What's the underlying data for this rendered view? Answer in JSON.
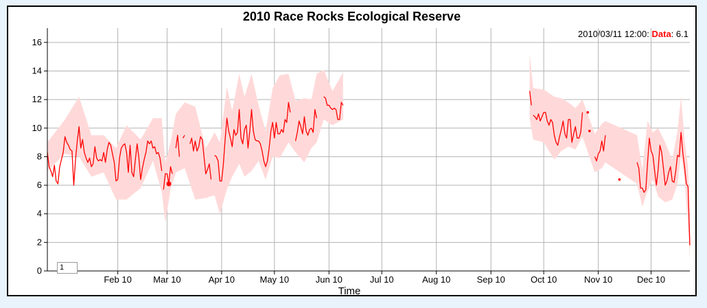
{
  "chart_data": {
    "type": "line",
    "title": "2010 Race Rocks Ecological Reserve",
    "xlabel": "Time",
    "ylabel": "",
    "ylim": [
      0,
      17
    ],
    "xlim": [
      0,
      365
    ],
    "y_ticks": [
      0,
      2,
      4,
      6,
      8,
      10,
      12,
      14,
      16
    ],
    "x_ticks": [
      {
        "label": "Feb 10",
        "day": 40
      },
      {
        "label": "Mar 10",
        "day": 68
      },
      {
        "label": "Apr 10",
        "day": 99
      },
      {
        "label": "May 10",
        "day": 129
      },
      {
        "label": "Jun 10",
        "day": 160
      },
      {
        "label": "Jul 10",
        "day": 190
      },
      {
        "label": "Aug 10",
        "day": 221
      },
      {
        "label": "Sep 10",
        "day": 252
      },
      {
        "label": "Oct 10",
        "day": 282
      },
      {
        "label": "Nov 10",
        "day": 313
      },
      {
        "label": "Dec 10",
        "day": 343
      }
    ],
    "grid": true,
    "line_color": "#ff0000",
    "band_color": "#ffd9d9",
    "series": [
      {
        "values": [
          [
            0,
            8.3
          ],
          [
            1,
            7.3
          ],
          [
            2,
            7.0
          ],
          [
            3,
            6.6
          ],
          [
            4,
            7.4
          ],
          [
            5,
            6.3
          ],
          [
            6,
            6.1
          ],
          [
            7,
            7.3
          ],
          [
            8,
            7.8
          ],
          [
            9,
            8.3
          ],
          [
            10,
            9.4
          ],
          [
            11,
            9.0
          ],
          [
            12,
            8.8
          ],
          [
            13,
            8.5
          ],
          [
            14,
            8.4
          ],
          [
            15,
            6.0
          ],
          [
            16,
            7.8
          ],
          [
            17,
            9.1
          ],
          [
            18,
            10.1
          ],
          [
            19,
            8.6
          ],
          [
            20,
            9.2
          ],
          [
            21,
            8.3
          ],
          [
            22,
            7.9
          ],
          [
            23,
            7.6
          ],
          [
            24,
            7.9
          ],
          [
            25,
            7.3
          ],
          [
            26,
            7.5
          ],
          [
            27,
            8.7
          ],
          [
            28,
            7.9
          ],
          [
            29,
            7.7
          ],
          [
            30,
            7.8
          ],
          [
            31,
            7.7
          ],
          [
            32,
            8.3
          ],
          [
            33,
            7.6
          ],
          [
            34,
            8.5
          ],
          [
            35,
            9.0
          ],
          [
            36,
            8.8
          ],
          [
            37,
            8.2
          ],
          [
            38,
            7.6
          ],
          [
            39,
            6.3
          ],
          [
            40,
            6.4
          ],
          [
            41,
            7.9
          ],
          [
            42,
            8.6
          ],
          [
            43,
            8.8
          ],
          [
            44,
            8.9
          ],
          [
            45,
            8.3
          ],
          [
            46,
            6.9
          ],
          [
            47,
            8.8
          ],
          [
            48,
            6.9
          ],
          [
            49,
            6.6
          ],
          [
            50,
            7.8
          ],
          [
            51,
            8.9
          ],
          [
            52,
            7.9
          ],
          [
            53,
            6.4
          ],
          [
            54,
            7.2
          ],
          [
            55,
            7.8
          ],
          [
            56,
            8.3
          ],
          [
            57,
            9.1
          ],
          [
            58,
            8.9
          ],
          [
            59,
            9.1
          ],
          [
            60,
            8.6
          ],
          [
            61,
            8.7
          ],
          [
            62,
            8.2
          ],
          [
            63,
            8.3
          ],
          [
            64,
            7.9
          ],
          [
            65,
            7.0
          ],
          null,
          [
            66,
            5.7
          ],
          [
            67,
            6.8
          ],
          [
            68,
            6.8
          ],
          [
            69,
            6.1
          ],
          [
            70,
            7.3
          ],
          [
            71,
            6.8
          ],
          null,
          [
            73,
            8.6
          ],
          [
            74,
            9.5
          ],
          [
            75,
            8.0
          ],
          null,
          [
            77,
            9.3
          ],
          [
            78,
            9.5
          ],
          null,
          [
            81,
            8.9
          ],
          [
            82,
            9.3
          ],
          [
            83,
            8.4
          ],
          [
            84,
            9.1
          ],
          [
            85,
            8.4
          ],
          [
            86,
            8.7
          ],
          [
            87,
            9.4
          ],
          [
            88,
            9.2
          ],
          [
            89,
            8.0
          ],
          [
            90,
            6.8
          ],
          [
            91,
            7.1
          ],
          [
            92,
            7.5
          ],
          [
            93,
            6.4
          ],
          null,
          [
            95,
            8.1
          ],
          [
            96,
            8.0
          ],
          [
            97,
            7.7
          ],
          [
            98,
            6.3
          ],
          [
            99,
            6.3
          ],
          [
            100,
            7.5
          ],
          [
            101,
            9.2
          ],
          [
            102,
            10.7
          ],
          [
            103,
            9.8
          ],
          [
            104,
            9.3
          ],
          [
            105,
            8.7
          ],
          [
            106,
            9.9
          ],
          [
            107,
            9.5
          ],
          [
            108,
            9.7
          ],
          [
            109,
            11.3
          ],
          [
            110,
            9.3
          ],
          [
            111,
            8.9
          ],
          [
            112,
            9.9
          ],
          [
            113,
            10.2
          ],
          [
            114,
            8.6
          ],
          [
            115,
            9.8
          ],
          [
            116,
            11.3
          ],
          [
            117,
            9.8
          ],
          [
            118,
            9.2
          ],
          [
            119,
            9.1
          ],
          [
            120,
            9.1
          ],
          [
            121,
            8.9
          ],
          [
            122,
            8.4
          ],
          [
            123,
            7.7
          ],
          [
            124,
            7.3
          ],
          [
            125,
            7.7
          ],
          [
            126,
            8.6
          ],
          [
            127,
            9.8
          ],
          [
            128,
            10.4
          ],
          [
            129,
            9.3
          ],
          [
            130,
            10.4
          ],
          [
            131,
            9.6
          ],
          [
            132,
            9.6
          ],
          [
            133,
            9.9
          ],
          [
            134,
            9.7
          ],
          [
            135,
            10.6
          ],
          [
            136,
            10.4
          ],
          [
            137,
            11.8
          ],
          [
            138,
            11.1
          ],
          null,
          [
            141,
            9.1
          ],
          [
            142,
            9.7
          ],
          [
            143,
            10.5
          ],
          [
            144,
            10.1
          ],
          [
            145,
            9.6
          ],
          [
            146,
            10.8
          ],
          [
            147,
            9.8
          ],
          [
            148,
            9.5
          ],
          [
            149,
            9.9
          ],
          [
            150,
            10.0
          ],
          [
            151,
            9.7
          ],
          [
            152,
            11.3
          ],
          [
            153,
            10.7
          ],
          null,
          [
            157,
            12.2
          ],
          [
            158,
            12.1
          ],
          [
            159,
            11.6
          ],
          [
            160,
            11.6
          ],
          [
            161,
            11.4
          ],
          [
            162,
            11.3
          ],
          [
            163,
            11.4
          ],
          [
            164,
            11.3
          ],
          [
            165,
            10.6
          ],
          [
            166,
            10.6
          ],
          [
            167,
            11.8
          ],
          [
            168,
            11.6
          ],
          null,
          [
            274,
            12.6
          ],
          [
            275,
            11.6
          ],
          null,
          [
            276,
            10.9
          ],
          [
            277,
            10.8
          ],
          [
            278,
            10.6
          ],
          [
            279,
            11.0
          ],
          [
            280,
            10.5
          ],
          [
            281,
            10.8
          ],
          [
            282,
            11.1
          ],
          [
            283,
            11.1
          ],
          [
            284,
            10.5
          ],
          [
            285,
            10.2
          ],
          [
            286,
            10.6
          ],
          [
            287,
            10.4
          ],
          [
            288,
            9.5
          ],
          [
            289,
            9.0
          ],
          [
            290,
            8.8
          ],
          [
            291,
            9.4
          ],
          [
            292,
            9.9
          ],
          [
            293,
            10.5
          ],
          [
            294,
            9.6
          ],
          [
            295,
            9.3
          ],
          [
            296,
            10.6
          ],
          [
            297,
            10.6
          ],
          [
            298,
            9.0
          ],
          [
            299,
            9.6
          ],
          [
            300,
            10.1
          ],
          [
            301,
            9.3
          ],
          [
            302,
            9.3
          ],
          [
            303,
            9.7
          ],
          [
            304,
            11.1
          ],
          null,
          [
            311,
            8.0
          ],
          [
            312,
            7.7
          ],
          [
            313,
            8.2
          ],
          [
            314,
            8.4
          ],
          [
            315,
            9.1
          ],
          [
            316,
            8.4
          ],
          [
            317,
            9.5
          ],
          null,
          [
            335,
            7.6
          ],
          [
            336,
            7.2
          ],
          [
            337,
            5.8
          ],
          [
            338,
            5.8
          ],
          [
            339,
            5.5
          ],
          [
            340,
            5.7
          ],
          [
            341,
            7.6
          ],
          [
            342,
            9.3
          ],
          [
            343,
            8.4
          ],
          [
            344,
            8.1
          ],
          [
            345,
            7.0
          ],
          [
            346,
            6.0
          ],
          [
            347,
            7.1
          ],
          [
            348,
            8.8
          ],
          [
            349,
            8.3
          ],
          [
            350,
            7.2
          ],
          [
            351,
            6.0
          ],
          [
            352,
            6.3
          ],
          [
            353,
            6.9
          ],
          [
            354,
            7.3
          ],
          [
            355,
            6.3
          ],
          [
            356,
            6.2
          ],
          [
            357,
            7.0
          ],
          [
            358,
            8.1
          ],
          [
            359,
            8.0
          ],
          [
            360,
            9.7
          ],
          [
            361,
            8.3
          ],
          [
            362,
            7.3
          ],
          [
            363,
            6.1
          ],
          [
            364,
            5.9
          ],
          [
            365,
            1.8
          ]
        ],
        "band": [
          [
            0,
            7.0,
            9.0
          ],
          [
            10,
            8.2,
            10.6
          ],
          [
            18,
            8.0,
            12.2
          ],
          [
            25,
            6.6,
            9.5
          ],
          [
            32,
            6.9,
            9.5
          ],
          [
            39,
            5.0,
            8.6
          ],
          [
            45,
            5.0,
            10.2
          ],
          [
            53,
            5.8,
            9.2
          ],
          [
            60,
            7.7,
            10.7
          ],
          [
            65,
            5.5,
            10.7
          ],
          [
            67,
            3.4,
            7.6
          ],
          [
            70,
            5.7,
            9.0
          ],
          [
            73,
            6.9,
            11.0
          ],
          [
            78,
            7.2,
            11.8
          ],
          [
            84,
            5.0,
            11.5
          ],
          [
            90,
            5.1,
            8.6
          ],
          [
            95,
            5.3,
            9.7
          ],
          [
            98,
            4.0,
            9.0
          ],
          [
            102,
            5.7,
            12.9
          ],
          [
            105,
            6.6,
            11.2
          ],
          [
            109,
            7.5,
            13.8
          ],
          [
            112,
            6.6,
            12.2
          ],
          [
            116,
            7.0,
            13.8
          ],
          [
            120,
            7.7,
            11.6
          ],
          [
            124,
            6.4,
            9.8
          ],
          [
            128,
            8.0,
            12.8
          ],
          [
            132,
            7.9,
            13.7
          ],
          [
            137,
            9.0,
            13.8
          ],
          [
            141,
            8.3,
            11.9
          ],
          [
            146,
            7.6,
            12.1
          ],
          [
            150,
            8.6,
            12.0
          ],
          [
            153,
            9.0,
            13.8
          ],
          [
            157,
            10.6,
            14.1
          ],
          [
            162,
            10.2,
            12.6
          ],
          [
            168,
            10.6,
            13.9
          ],
          [
            274,
            10.7,
            15.2
          ],
          [
            276,
            9.2,
            12.8
          ],
          [
            282,
            9.0,
            12.7
          ],
          [
            288,
            7.8,
            12.2
          ],
          [
            292,
            8.4,
            12.1
          ],
          [
            296,
            8.7,
            11.8
          ],
          [
            300,
            8.5,
            11.4
          ],
          [
            304,
            9.4,
            12.0
          ],
          [
            311,
            6.9,
            9.6
          ],
          [
            315,
            7.2,
            10.3
          ],
          [
            317,
            7.6,
            10.5
          ],
          [
            335,
            6.1,
            9.5
          ],
          [
            338,
            4.5,
            7.1
          ],
          [
            341,
            5.6,
            10.5
          ],
          [
            344,
            6.4,
            9.7
          ],
          [
            347,
            5.2,
            10.0
          ],
          [
            351,
            4.8,
            9.0
          ],
          [
            355,
            5.0,
            7.8
          ],
          [
            358,
            6.1,
            9.8
          ],
          [
            360,
            8.1,
            12.2
          ],
          [
            362,
            6.4,
            9.2
          ],
          [
            364,
            3.0,
            7.3
          ],
          [
            365,
            0.9,
            3.0
          ]
        ],
        "points": [
          [
            307,
            11.1
          ],
          [
            308,
            9.8
          ],
          [
            325,
            6.4
          ]
        ]
      }
    ],
    "highlight": {
      "day": 69,
      "value": 6.1
    }
  },
  "readout": {
    "time": "2010/03/11 12:00:",
    "label": "Data",
    "value": "6.1"
  },
  "roll_period": "1"
}
